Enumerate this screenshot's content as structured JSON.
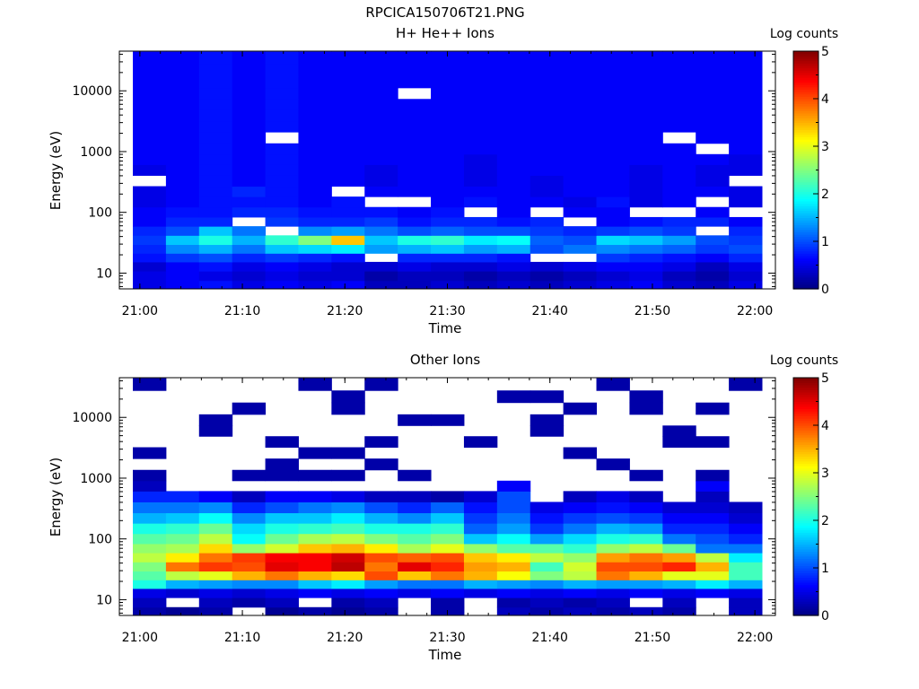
{
  "figure_title": "RPCICA150706T21.PNG",
  "chart_data": [
    {
      "type": "heatmap",
      "title": "H+ He++ Ions",
      "xlabel": "Time",
      "ylabel": "Energy (eV)",
      "y_scale": "log",
      "x_tick_labels": [
        "21:00",
        "21:10",
        "21:20",
        "21:30",
        "21:40",
        "21:50",
        "22:00"
      ],
      "y_tick_labels": [
        "10",
        "100",
        "1000",
        "10000"
      ],
      "ylim": [
        5.5,
        45000
      ],
      "colorbar": {
        "label": "Log counts",
        "range": [
          0,
          5
        ],
        "tick_labels": [
          "0",
          "1",
          "2",
          "3",
          "4",
          "5"
        ]
      },
      "times": [
        "21:01:20",
        "21:04:40",
        "21:08:00",
        "21:11:20",
        "21:14:40",
        "21:18:00",
        "21:21:20",
        "21:24:40",
        "21:28:00",
        "21:31:20",
        "21:34:40",
        "21:38:00",
        "21:41:20",
        "21:44:40",
        "21:48:00",
        "21:51:20",
        "21:54:40",
        "21:58:00",
        "22:01:20"
      ],
      "energy_levels_eV": [
        6.3,
        9.0,
        13,
        18,
        25,
        35,
        50,
        70,
        100,
        150,
        220,
        330,
        500,
        750,
        1100,
        1700,
        2600,
        4000,
        6000,
        9000,
        14000,
        22000,
        35000
      ],
      "log_counts": [
        [
          0.5,
          0.6,
          0.7,
          0.5,
          0.6,
          0.5,
          0.6,
          0.3,
          0.3,
          0.4,
          0.3,
          0.4,
          0.3,
          0.4,
          0.5,
          0.6,
          0.4,
          0.3,
          0.5
        ],
        [
          0.5,
          0.6,
          0.5,
          0.4,
          0.5,
          0.4,
          0.4,
          0.2,
          0.3,
          0.3,
          0.2,
          0.3,
          0.2,
          0.3,
          0.4,
          0.5,
          0.3,
          0.2,
          0.4
        ],
        [
          0.4,
          0.6,
          0.7,
          0.5,
          0.6,
          0.5,
          0.4,
          0.4,
          0.5,
          0.4,
          0.4,
          0.5,
          0.4,
          0.5,
          0.6,
          0.6,
          0.5,
          0.3,
          0.5
        ],
        [
          0.7,
          0.9,
          1.0,
          0.8,
          0.9,
          0.8,
          0.7,
          null,
          0.8,
          0.8,
          0.8,
          0.7,
          null,
          null,
          0.9,
          0.8,
          0.7,
          0.6,
          0.8
        ],
        [
          0.8,
          1.3,
          1.5,
          1.2,
          1.6,
          1.7,
          1.8,
          1.4,
          1.5,
          1.6,
          1.4,
          1.5,
          1.0,
          1.2,
          1.3,
          1.2,
          1.1,
          0.9,
          1.0
        ],
        [
          0.9,
          1.6,
          2.0,
          1.5,
          2.1,
          2.5,
          3.4,
          1.6,
          2.0,
          2.1,
          1.8,
          1.9,
          1.1,
          1.0,
          1.7,
          1.6,
          1.4,
          1.0,
          0.9
        ],
        [
          0.8,
          1.0,
          1.6,
          1.2,
          null,
          1.3,
          1.4,
          1.2,
          1.0,
          1.1,
          1.0,
          1.0,
          0.9,
          0.8,
          0.9,
          1.0,
          0.9,
          null,
          0.8
        ],
        [
          0.6,
          0.8,
          0.8,
          null,
          0.9,
          0.8,
          0.8,
          0.9,
          0.7,
          0.8,
          0.8,
          0.7,
          0.8,
          null,
          0.6,
          0.7,
          0.8,
          0.8,
          0.6
        ],
        [
          0.6,
          0.7,
          0.7,
          0.8,
          0.8,
          0.7,
          0.7,
          0.7,
          0.6,
          0.7,
          null,
          0.6,
          null,
          0.6,
          0.6,
          null,
          null,
          0.6,
          null
        ],
        [
          0.5,
          0.6,
          0.7,
          0.7,
          0.7,
          0.6,
          0.7,
          null,
          null,
          0.6,
          0.7,
          0.6,
          0.6,
          0.5,
          0.7,
          0.5,
          0.6,
          null,
          0.5
        ],
        [
          0.5,
          0.6,
          0.7,
          0.8,
          0.7,
          0.6,
          null,
          0.6,
          0.6,
          0.6,
          0.6,
          0.6,
          0.5,
          0.6,
          0.6,
          0.5,
          0.6,
          0.6,
          0.5
        ],
        [
          null,
          0.6,
          0.7,
          0.6,
          0.7,
          0.6,
          0.6,
          0.5,
          0.6,
          0.6,
          0.5,
          0.6,
          0.5,
          0.6,
          0.6,
          0.5,
          0.6,
          0.5,
          null
        ],
        [
          0.5,
          0.6,
          0.7,
          0.6,
          0.7,
          0.6,
          0.6,
          0.5,
          0.6,
          0.6,
          0.5,
          0.6,
          0.6,
          0.6,
          0.6,
          0.5,
          0.6,
          0.5,
          0.5
        ],
        [
          0.6,
          0.6,
          0.7,
          0.6,
          0.7,
          0.6,
          0.6,
          0.6,
          0.6,
          0.6,
          0.5,
          0.6,
          0.6,
          0.6,
          0.6,
          0.6,
          0.6,
          0.6,
          0.5
        ],
        [
          0.6,
          0.6,
          0.7,
          0.6,
          0.7,
          0.6,
          0.6,
          0.6,
          0.6,
          0.6,
          0.6,
          0.6,
          0.6,
          0.6,
          0.6,
          0.6,
          0.6,
          null,
          0.6
        ],
        [
          0.6,
          0.6,
          0.7,
          0.6,
          null,
          0.6,
          0.6,
          0.6,
          0.6,
          0.6,
          0.6,
          0.6,
          0.6,
          0.6,
          0.6,
          0.6,
          null,
          0.6,
          0.6
        ],
        [
          0.6,
          0.6,
          0.7,
          0.6,
          0.7,
          0.6,
          0.6,
          0.6,
          0.6,
          0.6,
          0.6,
          0.6,
          0.6,
          0.6,
          0.6,
          0.6,
          0.6,
          0.6,
          0.6
        ],
        [
          0.6,
          0.6,
          0.7,
          0.6,
          0.7,
          0.6,
          0.6,
          0.6,
          0.6,
          0.6,
          0.6,
          0.6,
          0.6,
          0.6,
          0.6,
          0.6,
          0.6,
          0.6,
          0.6
        ],
        [
          0.6,
          0.6,
          0.7,
          0.6,
          0.7,
          0.6,
          0.6,
          0.6,
          0.6,
          0.6,
          0.6,
          0.6,
          0.6,
          0.6,
          0.6,
          0.6,
          0.6,
          0.6,
          0.6
        ],
        [
          0.6,
          0.6,
          0.7,
          0.6,
          0.7,
          0.6,
          0.6,
          0.6,
          null,
          0.6,
          0.6,
          0.6,
          0.6,
          0.6,
          0.6,
          0.6,
          0.6,
          0.6,
          0.6
        ],
        [
          0.6,
          0.6,
          0.7,
          0.6,
          0.7,
          0.6,
          0.6,
          0.6,
          0.6,
          0.6,
          0.6,
          0.6,
          0.6,
          0.6,
          0.6,
          0.6,
          0.6,
          0.6,
          0.6
        ],
        [
          0.6,
          0.6,
          0.7,
          0.6,
          0.7,
          0.6,
          0.6,
          0.6,
          0.6,
          0.6,
          0.6,
          0.6,
          0.6,
          0.6,
          0.6,
          0.6,
          0.6,
          0.6,
          0.6
        ],
        [
          0.6,
          0.6,
          0.7,
          0.6,
          0.7,
          0.6,
          0.6,
          0.6,
          0.6,
          0.6,
          0.6,
          0.6,
          0.6,
          0.6,
          0.6,
          0.6,
          0.6,
          0.6,
          0.6
        ]
      ]
    },
    {
      "type": "heatmap",
      "title": "Other Ions",
      "xlabel": "Time",
      "ylabel": "Energy (eV)",
      "y_scale": "log",
      "x_tick_labels": [
        "21:00",
        "21:10",
        "21:20",
        "21:30",
        "21:40",
        "21:50",
        "22:00"
      ],
      "y_tick_labels": [
        "10",
        "100",
        "1000",
        "10000"
      ],
      "ylim": [
        5.5,
        45000
      ],
      "colorbar": {
        "label": "Log counts",
        "range": [
          0,
          5
        ],
        "tick_labels": [
          "0",
          "1",
          "2",
          "3",
          "4",
          "5"
        ]
      },
      "times": [
        "21:01:20",
        "21:04:40",
        "21:08:00",
        "21:11:20",
        "21:14:40",
        "21:18:00",
        "21:21:20",
        "21:24:40",
        "21:28:00",
        "21:31:20",
        "21:34:40",
        "21:38:00",
        "21:41:20",
        "21:44:40",
        "21:48:00",
        "21:51:20",
        "21:54:40",
        "21:58:00",
        "22:01:20"
      ],
      "energy_levels_eV": [
        6.3,
        9.0,
        13,
        18,
        25,
        35,
        50,
        70,
        100,
        150,
        220,
        330,
        500,
        750,
        1100,
        1700,
        2600,
        4000,
        6000,
        9000,
        14000,
        22000,
        35000
      ],
      "log_counts": [
        [
          0.2,
          0.1,
          0.2,
          null,
          0.1,
          0.2,
          0.1,
          0.2,
          null,
          0.2,
          null,
          0.3,
          0.2,
          0.3,
          0.2,
          0.3,
          0.2,
          null,
          0.3
        ],
        [
          0.3,
          null,
          0.3,
          0.2,
          0.3,
          null,
          0.2,
          0.3,
          null,
          0.2,
          null,
          0.2,
          0.3,
          0.2,
          0.3,
          null,
          0.3,
          null,
          0.3
        ],
        [
          0.5,
          0.4,
          0.5,
          0.4,
          0.5,
          0.6,
          0.5,
          0.6,
          0.5,
          0.6,
          0.5,
          0.6,
          0.5,
          0.6,
          0.5,
          0.6,
          0.5,
          0.6,
          0.5
        ],
        [
          2.0,
          1.5,
          1.4,
          1.3,
          1.3,
          1.6,
          1.8,
          1.4,
          1.2,
          1.2,
          1.5,
          1.4,
          1.3,
          1.5,
          1.4,
          1.4,
          1.5,
          1.8,
          1.5
        ],
        [
          2.3,
          2.8,
          3.0,
          3.5,
          3.8,
          3.5,
          3.3,
          4.0,
          3.4,
          3.8,
          3.5,
          3.1,
          2.5,
          2.8,
          3.8,
          3.5,
          3.0,
          3.0,
          2.2
        ],
        [
          2.5,
          3.8,
          4.1,
          4.0,
          4.5,
          4.4,
          4.7,
          3.8,
          4.5,
          4.2,
          3.6,
          3.5,
          2.2,
          2.9,
          4.0,
          4.0,
          4.2,
          3.5,
          2.2
        ],
        [
          2.8,
          3.2,
          3.8,
          4.1,
          4.4,
          4.4,
          4.6,
          4.0,
          3.9,
          4.0,
          3.4,
          3.2,
          2.8,
          2.6,
          3.6,
          3.8,
          3.6,
          2.8,
          1.8
        ],
        [
          2.6,
          2.7,
          3.3,
          2.6,
          2.9,
          3.4,
          3.5,
          3.2,
          2.7,
          3.0,
          2.6,
          2.3,
          2.3,
          2.1,
          2.6,
          2.8,
          2.4,
          1.2,
          1.2
        ],
        [
          2.3,
          2.4,
          2.8,
          1.9,
          2.4,
          2.7,
          2.8,
          2.5,
          2.3,
          2.5,
          1.6,
          1.9,
          1.4,
          1.7,
          2.0,
          2.1,
          1.2,
          1.0,
          0.8
        ],
        [
          2.0,
          2.1,
          2.4,
          1.7,
          2.0,
          2.1,
          2.2,
          2.0,
          2.0,
          2.1,
          1.1,
          1.4,
          0.9,
          1.2,
          1.5,
          1.4,
          0.8,
          0.8,
          0.6
        ],
        [
          1.5,
          1.6,
          1.9,
          1.3,
          1.6,
          1.6,
          1.8,
          1.5,
          1.3,
          1.6,
          0.9,
          1.2,
          0.7,
          0.9,
          1.0,
          0.9,
          0.6,
          0.6,
          0.4
        ],
        [
          1.2,
          1.2,
          1.3,
          0.8,
          1.0,
          1.2,
          1.3,
          1.0,
          0.8,
          1.1,
          0.7,
          1.0,
          0.5,
          0.6,
          0.7,
          0.6,
          0.4,
          0.4,
          0.3
        ],
        [
          0.8,
          0.8,
          0.6,
          0.3,
          0.6,
          0.6,
          0.5,
          0.3,
          0.3,
          0.2,
          0.4,
          1.0,
          null,
          0.3,
          0.5,
          0.3,
          null,
          0.3,
          null
        ],
        [
          0.3,
          null,
          null,
          null,
          null,
          null,
          null,
          null,
          null,
          null,
          null,
          0.6,
          null,
          null,
          null,
          null,
          null,
          0.6,
          null
        ],
        [
          0.2,
          null,
          null,
          0.2,
          0.2,
          0.2,
          0.2,
          null,
          0.2,
          null,
          null,
          null,
          null,
          null,
          null,
          0.2,
          null,
          0.2,
          null
        ],
        [
          null,
          null,
          null,
          null,
          0.2,
          null,
          null,
          0.2,
          null,
          null,
          null,
          null,
          null,
          null,
          0.2,
          null,
          null,
          null,
          null
        ],
        [
          0.2,
          null,
          null,
          null,
          null,
          0.2,
          0.2,
          null,
          null,
          null,
          null,
          null,
          null,
          0.2,
          null,
          null,
          null,
          null,
          null
        ],
        [
          null,
          null,
          null,
          null,
          0.2,
          null,
          null,
          0.2,
          null,
          null,
          0.2,
          null,
          null,
          null,
          null,
          null,
          0.2,
          0.2,
          null
        ],
        [
          null,
          null,
          0.2,
          null,
          null,
          null,
          null,
          null,
          null,
          null,
          null,
          null,
          0.2,
          null,
          null,
          null,
          0.2,
          null,
          null
        ],
        [
          null,
          null,
          0.2,
          null,
          null,
          null,
          null,
          null,
          0.2,
          0.2,
          null,
          null,
          0.2,
          null,
          null,
          null,
          null,
          null,
          null
        ],
        [
          null,
          null,
          null,
          0.2,
          null,
          null,
          0.2,
          null,
          null,
          null,
          null,
          null,
          null,
          0.2,
          null,
          0.2,
          null,
          0.2,
          null
        ],
        [
          null,
          null,
          null,
          null,
          null,
          null,
          0.2,
          null,
          null,
          null,
          null,
          0.2,
          0.2,
          null,
          null,
          0.2,
          null,
          null,
          null
        ],
        [
          0.2,
          null,
          null,
          null,
          null,
          0.2,
          null,
          0.2,
          null,
          null,
          null,
          null,
          null,
          null,
          0.2,
          null,
          null,
          null,
          0.2
        ]
      ]
    }
  ]
}
